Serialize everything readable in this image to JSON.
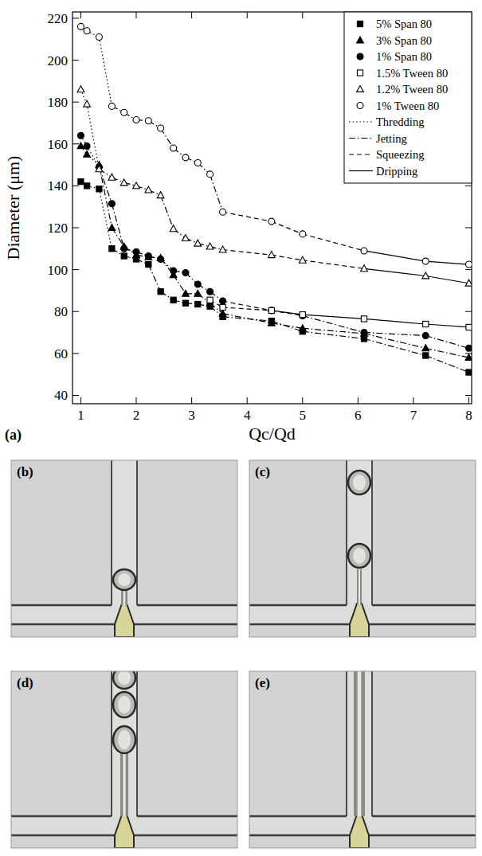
{
  "chart_data": {
    "type": "line",
    "x_label": "Qc/Qd",
    "y_label": "Diameter (μm)",
    "annotations": [
      {
        "text": "(a)"
      }
    ],
    "xlim": [
      0.85,
      8.05
    ],
    "ylim": [
      36,
      223
    ],
    "xticks": [
      1,
      2,
      3,
      4,
      5,
      6,
      7,
      8
    ],
    "yticks": [
      40,
      60,
      80,
      100,
      120,
      140,
      160,
      180,
      200,
      220
    ],
    "grid": false,
    "legend": "top-right",
    "line_styles": [
      {
        "name": "Thredding",
        "line_style": "dotted"
      },
      {
        "name": "Jetting",
        "line_style": "dashdot"
      },
      {
        "name": "Squeezing",
        "line_style": "dashed"
      },
      {
        "name": "Dripping",
        "line_style": "solid"
      }
    ],
    "series": [
      {
        "name": "5% Span 80",
        "color": "#000000",
        "marker": "filled-square",
        "x": [
          1,
          1.11,
          1.33,
          1.56,
          1.78,
          2,
          2.22,
          2.44,
          2.67,
          2.89,
          3.11,
          3.33,
          3.56,
          4.44,
          5,
          6.11,
          7.22,
          8
        ],
        "values": [
          142,
          140,
          138.5,
          110,
          106.5,
          105,
          102.5,
          89.5,
          85.5,
          84,
          83.5,
          82.5,
          77.5,
          75.5,
          70.5,
          67,
          59,
          51
        ],
        "regimes": [
          "Thredding",
          "Thredding",
          "Thredding",
          "Jetting",
          "Jetting",
          "Jetting",
          "Jetting",
          "Jetting",
          "Jetting",
          "Jetting",
          "Jetting",
          "Jetting",
          "Jetting",
          "Jetting",
          "Jetting",
          "Jetting",
          "Jetting"
        ]
      },
      {
        "name": "3% Span 80",
        "color": "#000000",
        "marker": "filled-triangle",
        "x": [
          1,
          1.11,
          1.33,
          1.56,
          1.78,
          2,
          2.22,
          2.44,
          2.67,
          2.89,
          3.11,
          3.33,
          3.56,
          4.44,
          5,
          6.11,
          7.22,
          8
        ],
        "values": [
          159,
          155,
          150,
          120,
          111,
          107,
          106,
          105.5,
          97.5,
          88.5,
          88.5,
          84,
          79,
          74.5,
          72,
          69.5,
          62.5,
          58
        ],
        "regimes": [
          "Thredding",
          "Thredding",
          "Jetting",
          "Jetting",
          "Jetting",
          "Jetting",
          "Jetting",
          "Jetting",
          "Jetting",
          "Jetting",
          "Jetting",
          "Jetting",
          "Jetting",
          "Jetting",
          "Jetting",
          "Jetting",
          "Jetting"
        ]
      },
      {
        "name": "1% Span 80",
        "color": "#000000",
        "marker": "filled-circle",
        "x": [
          1,
          1.11,
          1.33,
          1.56,
          1.78,
          2,
          2.22,
          2.44,
          2.67,
          2.89,
          3.11,
          3.33,
          3.56,
          4.44,
          5,
          6.11,
          7.22,
          8
        ],
        "values": [
          164,
          159,
          149,
          131.5,
          110,
          108.5,
          106.5,
          105,
          99.5,
          98.5,
          93,
          89.5,
          85,
          80.5,
          78,
          70,
          68.5,
          62.5
        ],
        "regimes": [
          "Thredding",
          "Thredding",
          "Jetting",
          "Jetting",
          "Jetting",
          "Jetting",
          "Jetting",
          "Jetting",
          "Jetting",
          "Jetting",
          "Jetting",
          "Jetting",
          "Squeezing",
          "Squeezing",
          "Jetting",
          "Jetting",
          "Jetting"
        ]
      },
      {
        "name": "1.5% Tween 80",
        "color": "#000000",
        "marker": "open-square",
        "x": [
          3.33,
          3.56,
          4.44,
          5,
          6.11,
          7.22,
          8
        ],
        "values": [
          85.5,
          82,
          80.5,
          78.5,
          76.5,
          74,
          72.5
        ],
        "regimes": [
          "Squeezing",
          "Squeezing",
          "Dripping",
          "Dripping",
          "Dripping",
          "Dripping"
        ]
      },
      {
        "name": "1.2% Tween 80",
        "color": "#000000",
        "marker": "open-triangle",
        "x": [
          1,
          1.11,
          1.33,
          1.56,
          1.78,
          2,
          2.22,
          2.44,
          2.67,
          2.89,
          3.11,
          3.33,
          3.56,
          4.44,
          5,
          6.11,
          7.22,
          8
        ],
        "values": [
          186,
          179,
          148,
          144,
          141.5,
          140,
          138,
          135.5,
          119.5,
          115,
          112.5,
          111,
          109.5,
          107,
          104.5,
          100.5,
          97,
          93.5
        ],
        "regimes": [
          "Thredding",
          "Thredding",
          "Jetting",
          "Jetting",
          "Jetting",
          "Jetting",
          "Jetting",
          "Jetting",
          "Jetting",
          "Jetting",
          "Jetting",
          "Jetting",
          "Squeezing",
          "Squeezing",
          "Squeezing",
          "Dripping",
          "Dripping"
        ]
      },
      {
        "name": "1% Tween 80",
        "color": "#000000",
        "marker": "open-circle",
        "x": [
          1,
          1.11,
          1.33,
          1.56,
          1.78,
          2,
          2.22,
          2.44,
          2.67,
          2.89,
          3.11,
          3.33,
          3.56,
          4.44,
          5,
          6.11,
          7.22,
          8
        ],
        "values": [
          216,
          214,
          211,
          178,
          175,
          171.5,
          171,
          167.5,
          158,
          153.5,
          151,
          145.5,
          127.5,
          123,
          117,
          109,
          104,
          102.5
        ],
        "regimes": [
          "Thredding",
          "Thredding",
          "Thredding",
          "Jetting",
          "Jetting",
          "Jetting",
          "Jetting",
          "Jetting",
          "Jetting",
          "Jetting",
          "Jetting",
          "Jetting",
          "Squeezing",
          "Squeezing",
          "Squeezing",
          "Dripping",
          "Dripping"
        ]
      }
    ]
  },
  "panels": [
    {
      "label": "(b)"
    },
    {
      "label": "(c)"
    },
    {
      "label": "(d)"
    },
    {
      "label": "(e)"
    }
  ]
}
